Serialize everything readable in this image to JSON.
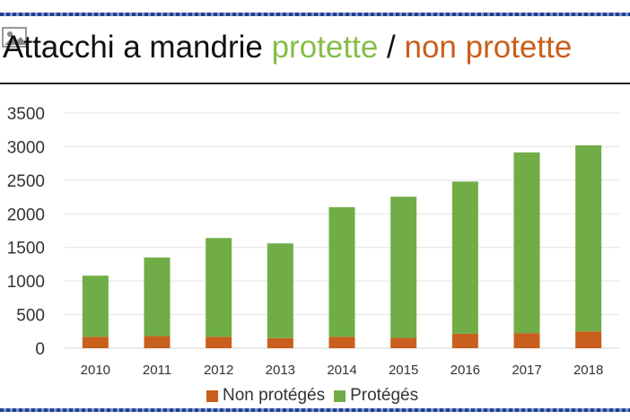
{
  "title": {
    "part1": "Attacchi a mandrie ",
    "part2": "protette",
    "part3": " / ",
    "part4": "non protette"
  },
  "colors": {
    "protected": "#70ad47",
    "non_protected": "#c95f1c",
    "title_green": "#86be48",
    "title_orange": "#c95f1c"
  },
  "icons": {
    "broken_image": "broken-image-icon"
  },
  "chart_data": {
    "type": "bar",
    "stacked": true,
    "categories": [
      "2010",
      "2011",
      "2012",
      "2013",
      "2014",
      "2015",
      "2016",
      "2017",
      "2018"
    ],
    "series": [
      {
        "name": "Non protégés",
        "values": [
          170,
          180,
          170,
          150,
          170,
          155,
          215,
          225,
          250
        ]
      },
      {
        "name": "Protégés",
        "values": [
          910,
          1170,
          1470,
          1410,
          1930,
          2100,
          2265,
          2690,
          2770
        ]
      }
    ],
    "yticks": [
      "0",
      "500",
      "1000",
      "1500",
      "2000",
      "2500",
      "3000",
      "3500"
    ],
    "ylim": [
      0,
      3500
    ],
    "grid": true,
    "legend_position": "bottom"
  }
}
